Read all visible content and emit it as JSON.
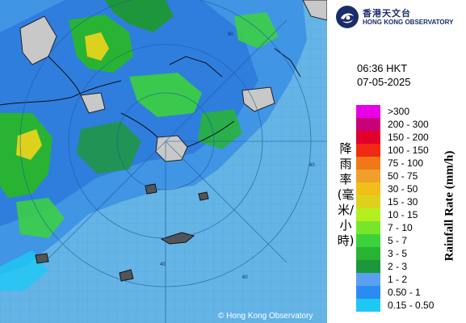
{
  "header": {
    "logo_cn": "香港天文台",
    "logo_en": "HONG KONG OBSERVATORY"
  },
  "timestamp": {
    "time": "06:36 HKT",
    "date": "07-05-2025"
  },
  "legend": {
    "title_cn": "降雨率(毫米/小時)",
    "title_en": "Rainfall Rate (mm/h)",
    "items": [
      {
        "label": ">300",
        "color": "#e800e8"
      },
      {
        "label": "200 - 300",
        "color": "#c8007a"
      },
      {
        "label": "150 - 200",
        "color": "#e0002a"
      },
      {
        "label": "100 - 150",
        "color": "#f02a14"
      },
      {
        "label": "75 - 100",
        "color": "#f07818"
      },
      {
        "label": "50 - 75",
        "color": "#f0a028"
      },
      {
        "label": "30 - 50",
        "color": "#f0c018"
      },
      {
        "label": "15 - 30",
        "color": "#dcd21e"
      },
      {
        "label": "10 - 15",
        "color": "#b4f01e"
      },
      {
        "label": "7 - 10",
        "color": "#78e628"
      },
      {
        "label": "5 - 7",
        "color": "#3cd23c"
      },
      {
        "label": "3 - 5",
        "color": "#28b432"
      },
      {
        "label": "2 - 3",
        "color": "#1e963c"
      },
      {
        "label": "1 - 2",
        "color": "#5aa0f0"
      },
      {
        "label": "0.50 - 1",
        "color": "#2a8cf0"
      },
      {
        "label": "0.15 - 0.50",
        "color": "#1ec8f5"
      }
    ]
  },
  "map": {
    "range_rings": [
      "60",
      "60",
      "60",
      "40"
    ],
    "copyright": "© Hong Kong Observatory",
    "sea_color": "#64b4e6",
    "land_color": "#c8c8c8"
  }
}
